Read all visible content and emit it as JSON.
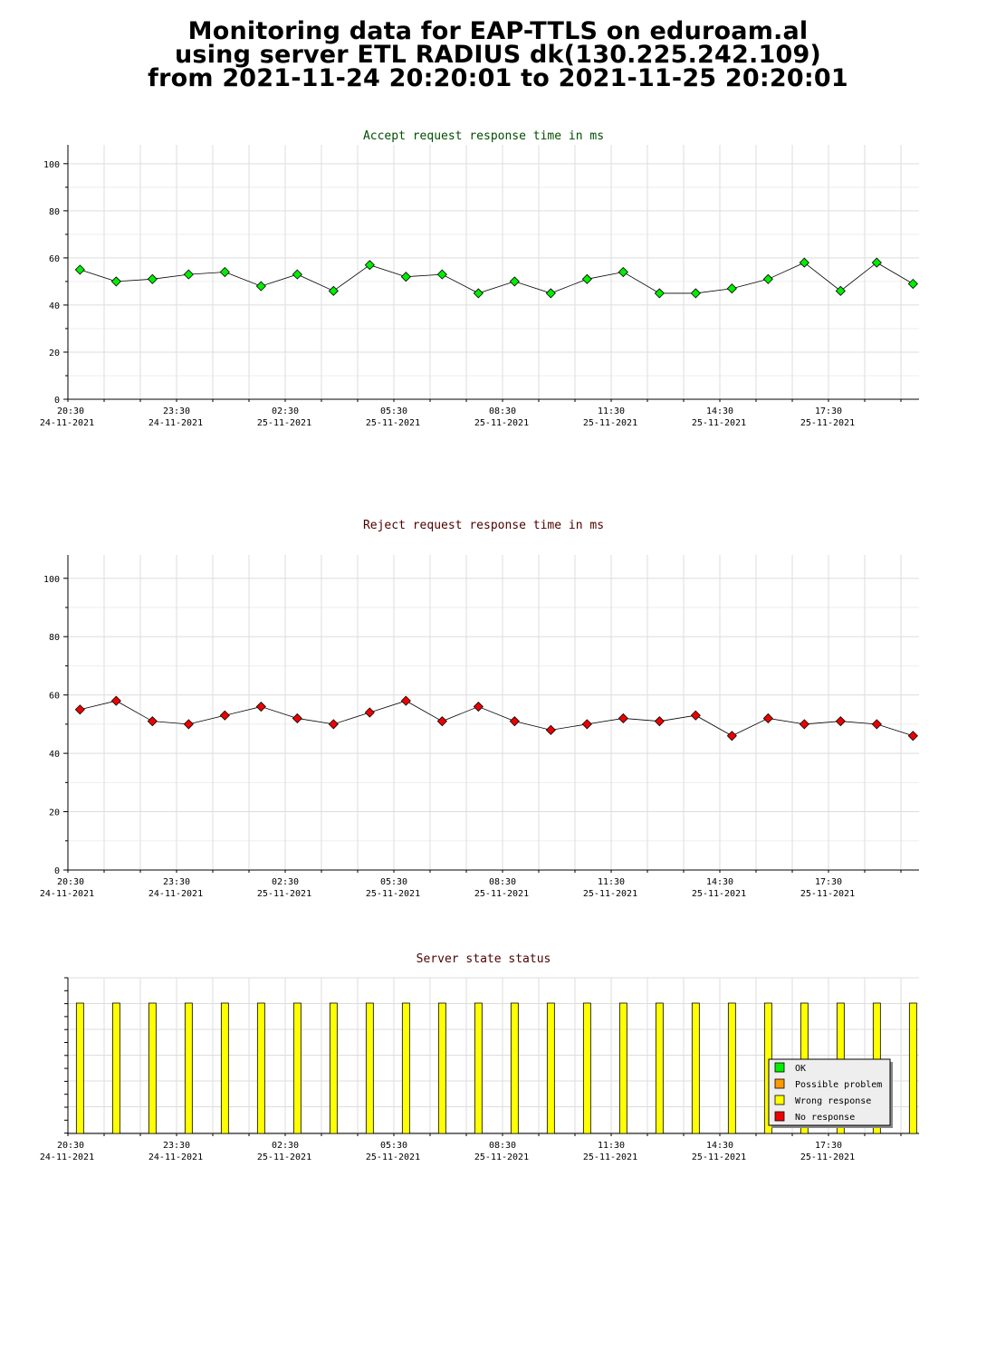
{
  "header": {
    "line1": "Monitoring data for EAP-TTLS on eduroam.al",
    "line2": "using server ETL RADIUS dk(130.225.242.109)",
    "line3": "from 2021-11-24 20:20:01 to 2021-11-25 20:20:01"
  },
  "colors": {
    "accept_title": "#004d00",
    "reject_title": "#4d0000",
    "status_title": "#4d0000",
    "accept_marker": "#00ee00",
    "reject_marker": "#ee0000",
    "status_bar": "#ffff00",
    "grid": "#dddddd"
  },
  "chart_data": [
    {
      "type": "line",
      "title": "Accept request response time in ms",
      "x_tick_labels": [
        {
          "time": "20:30",
          "date": "24-11-2021"
        },
        {
          "time": "23:30",
          "date": "24-11-2021"
        },
        {
          "time": "02:30",
          "date": "25-11-2021"
        },
        {
          "time": "05:30",
          "date": "25-11-2021"
        },
        {
          "time": "08:30",
          "date": "25-11-2021"
        },
        {
          "time": "11:30",
          "date": "25-11-2021"
        },
        {
          "time": "14:30",
          "date": "25-11-2021"
        },
        {
          "time": "17:30",
          "date": "25-11-2021"
        }
      ],
      "y_ticks": [
        0,
        20,
        40,
        60,
        80,
        100
      ],
      "ylim": [
        0,
        108
      ],
      "grid": true,
      "x": [
        "2021-11-24 20:50",
        "2021-11-24 21:50",
        "2021-11-24 22:50",
        "2021-11-24 23:50",
        "2021-11-25 00:50",
        "2021-11-25 01:50",
        "2021-11-25 02:50",
        "2021-11-25 03:50",
        "2021-11-25 04:50",
        "2021-11-25 05:50",
        "2021-11-25 06:50",
        "2021-11-25 07:50",
        "2021-11-25 08:50",
        "2021-11-25 09:50",
        "2021-11-25 10:50",
        "2021-11-25 11:50",
        "2021-11-25 12:50",
        "2021-11-25 13:50",
        "2021-11-25 14:50",
        "2021-11-25 15:50",
        "2021-11-25 16:50",
        "2021-11-25 17:50",
        "2021-11-25 18:50",
        "2021-11-25 19:50"
      ],
      "values": [
        55,
        50,
        51,
        53,
        54,
        48,
        53,
        46,
        57,
        52,
        53,
        45,
        50,
        45,
        51,
        54,
        45,
        45,
        47,
        51,
        58,
        46,
        58,
        49
      ]
    },
    {
      "type": "line",
      "title": "Reject request response time in ms",
      "x_tick_labels": [
        {
          "time": "20:30",
          "date": "24-11-2021"
        },
        {
          "time": "23:30",
          "date": "24-11-2021"
        },
        {
          "time": "02:30",
          "date": "25-11-2021"
        },
        {
          "time": "05:30",
          "date": "25-11-2021"
        },
        {
          "time": "08:30",
          "date": "25-11-2021"
        },
        {
          "time": "11:30",
          "date": "25-11-2021"
        },
        {
          "time": "14:30",
          "date": "25-11-2021"
        },
        {
          "time": "17:30",
          "date": "25-11-2021"
        }
      ],
      "y_ticks": [
        0,
        20,
        40,
        60,
        80,
        100
      ],
      "ylim": [
        0,
        108
      ],
      "grid": true,
      "x": [
        "2021-11-24 20:50",
        "2021-11-24 21:50",
        "2021-11-24 22:50",
        "2021-11-24 23:50",
        "2021-11-25 00:50",
        "2021-11-25 01:50",
        "2021-11-25 02:50",
        "2021-11-25 03:50",
        "2021-11-25 04:50",
        "2021-11-25 05:50",
        "2021-11-25 06:50",
        "2021-11-25 07:50",
        "2021-11-25 08:50",
        "2021-11-25 09:50",
        "2021-11-25 10:50",
        "2021-11-25 11:50",
        "2021-11-25 12:50",
        "2021-11-25 13:50",
        "2021-11-25 14:50",
        "2021-11-25 15:50",
        "2021-11-25 16:50",
        "2021-11-25 17:50",
        "2021-11-25 18:50",
        "2021-11-25 19:50"
      ],
      "values": [
        55,
        58,
        51,
        50,
        53,
        56,
        52,
        50,
        54,
        58,
        51,
        56,
        51,
        48,
        50,
        52,
        51,
        53,
        46,
        52,
        50,
        51,
        50,
        46
      ]
    },
    {
      "type": "bar",
      "title": "Server state status",
      "x_tick_labels": [
        {
          "time": "20:30",
          "date": "24-11-2021"
        },
        {
          "time": "23:30",
          "date": "24-11-2021"
        },
        {
          "time": "02:30",
          "date": "25-11-2021"
        },
        {
          "time": "05:30",
          "date": "25-11-2021"
        },
        {
          "time": "08:30",
          "date": "25-11-2021"
        },
        {
          "time": "11:30",
          "date": "25-11-2021"
        },
        {
          "time": "14:30",
          "date": "25-11-2021"
        },
        {
          "time": "17:30",
          "date": "25-11-2021"
        }
      ],
      "grid": true,
      "legend_position": "bottom-right",
      "legend": [
        {
          "label": "OK",
          "color": "#00ee00"
        },
        {
          "label": "Possible problem",
          "color": "#ff9900"
        },
        {
          "label": "Wrong response",
          "color": "#ffff00"
        },
        {
          "label": "No response",
          "color": "#ee0000"
        }
      ],
      "x": [
        "2021-11-24 20:50",
        "2021-11-24 21:50",
        "2021-11-24 22:50",
        "2021-11-24 23:50",
        "2021-11-25 00:50",
        "2021-11-25 01:50",
        "2021-11-25 02:50",
        "2021-11-25 03:50",
        "2021-11-25 04:50",
        "2021-11-25 05:50",
        "2021-11-25 06:50",
        "2021-11-25 07:50",
        "2021-11-25 08:50",
        "2021-11-25 09:50",
        "2021-11-25 10:50",
        "2021-11-25 11:50",
        "2021-11-25 12:50",
        "2021-11-25 13:50",
        "2021-11-25 14:50",
        "2021-11-25 15:50",
        "2021-11-25 16:50",
        "2021-11-25 17:50",
        "2021-11-25 18:50",
        "2021-11-25 19:50"
      ],
      "states": [
        "Wrong response",
        "Wrong response",
        "Wrong response",
        "Wrong response",
        "Wrong response",
        "Wrong response",
        "Wrong response",
        "Wrong response",
        "Wrong response",
        "Wrong response",
        "Wrong response",
        "Wrong response",
        "Wrong response",
        "Wrong response",
        "Wrong response",
        "Wrong response",
        "Wrong response",
        "Wrong response",
        "Wrong response",
        "Wrong response",
        "Wrong response",
        "Wrong response",
        "Wrong response",
        "Wrong response"
      ]
    }
  ]
}
